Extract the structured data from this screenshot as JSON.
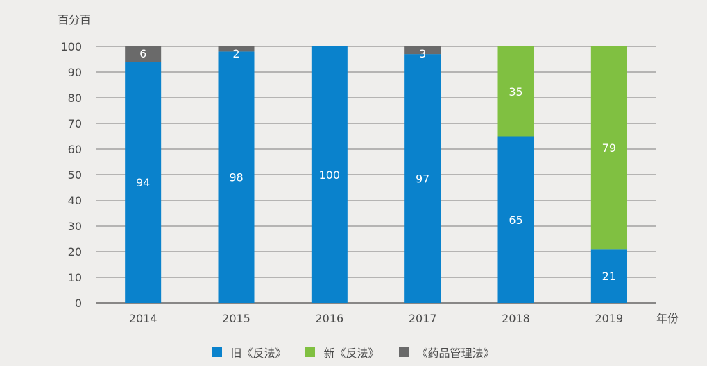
{
  "chart_data": {
    "type": "bar",
    "stacked": true,
    "ylabel": "百分百",
    "xlabel": "年份",
    "ylim": [
      0,
      100
    ],
    "yticks": [
      0,
      10,
      20,
      30,
      40,
      50,
      60,
      70,
      80,
      90,
      100
    ],
    "categories": [
      "2014",
      "2015",
      "2016",
      "2017",
      "2018",
      "2019"
    ],
    "series": [
      {
        "name": "旧《反法》",
        "color": "#0a82cc",
        "values": [
          94,
          98,
          100,
          97,
          65,
          21
        ]
      },
      {
        "name": "新《反法》",
        "color": "#80c041",
        "values": [
          0,
          0,
          0,
          0,
          35,
          79
        ]
      },
      {
        "name": "《药品管理法》",
        "color": "#6a6a6a",
        "values": [
          6,
          2,
          0,
          3,
          0,
          0
        ]
      }
    ],
    "grid": true,
    "legend_position": "bottom"
  }
}
